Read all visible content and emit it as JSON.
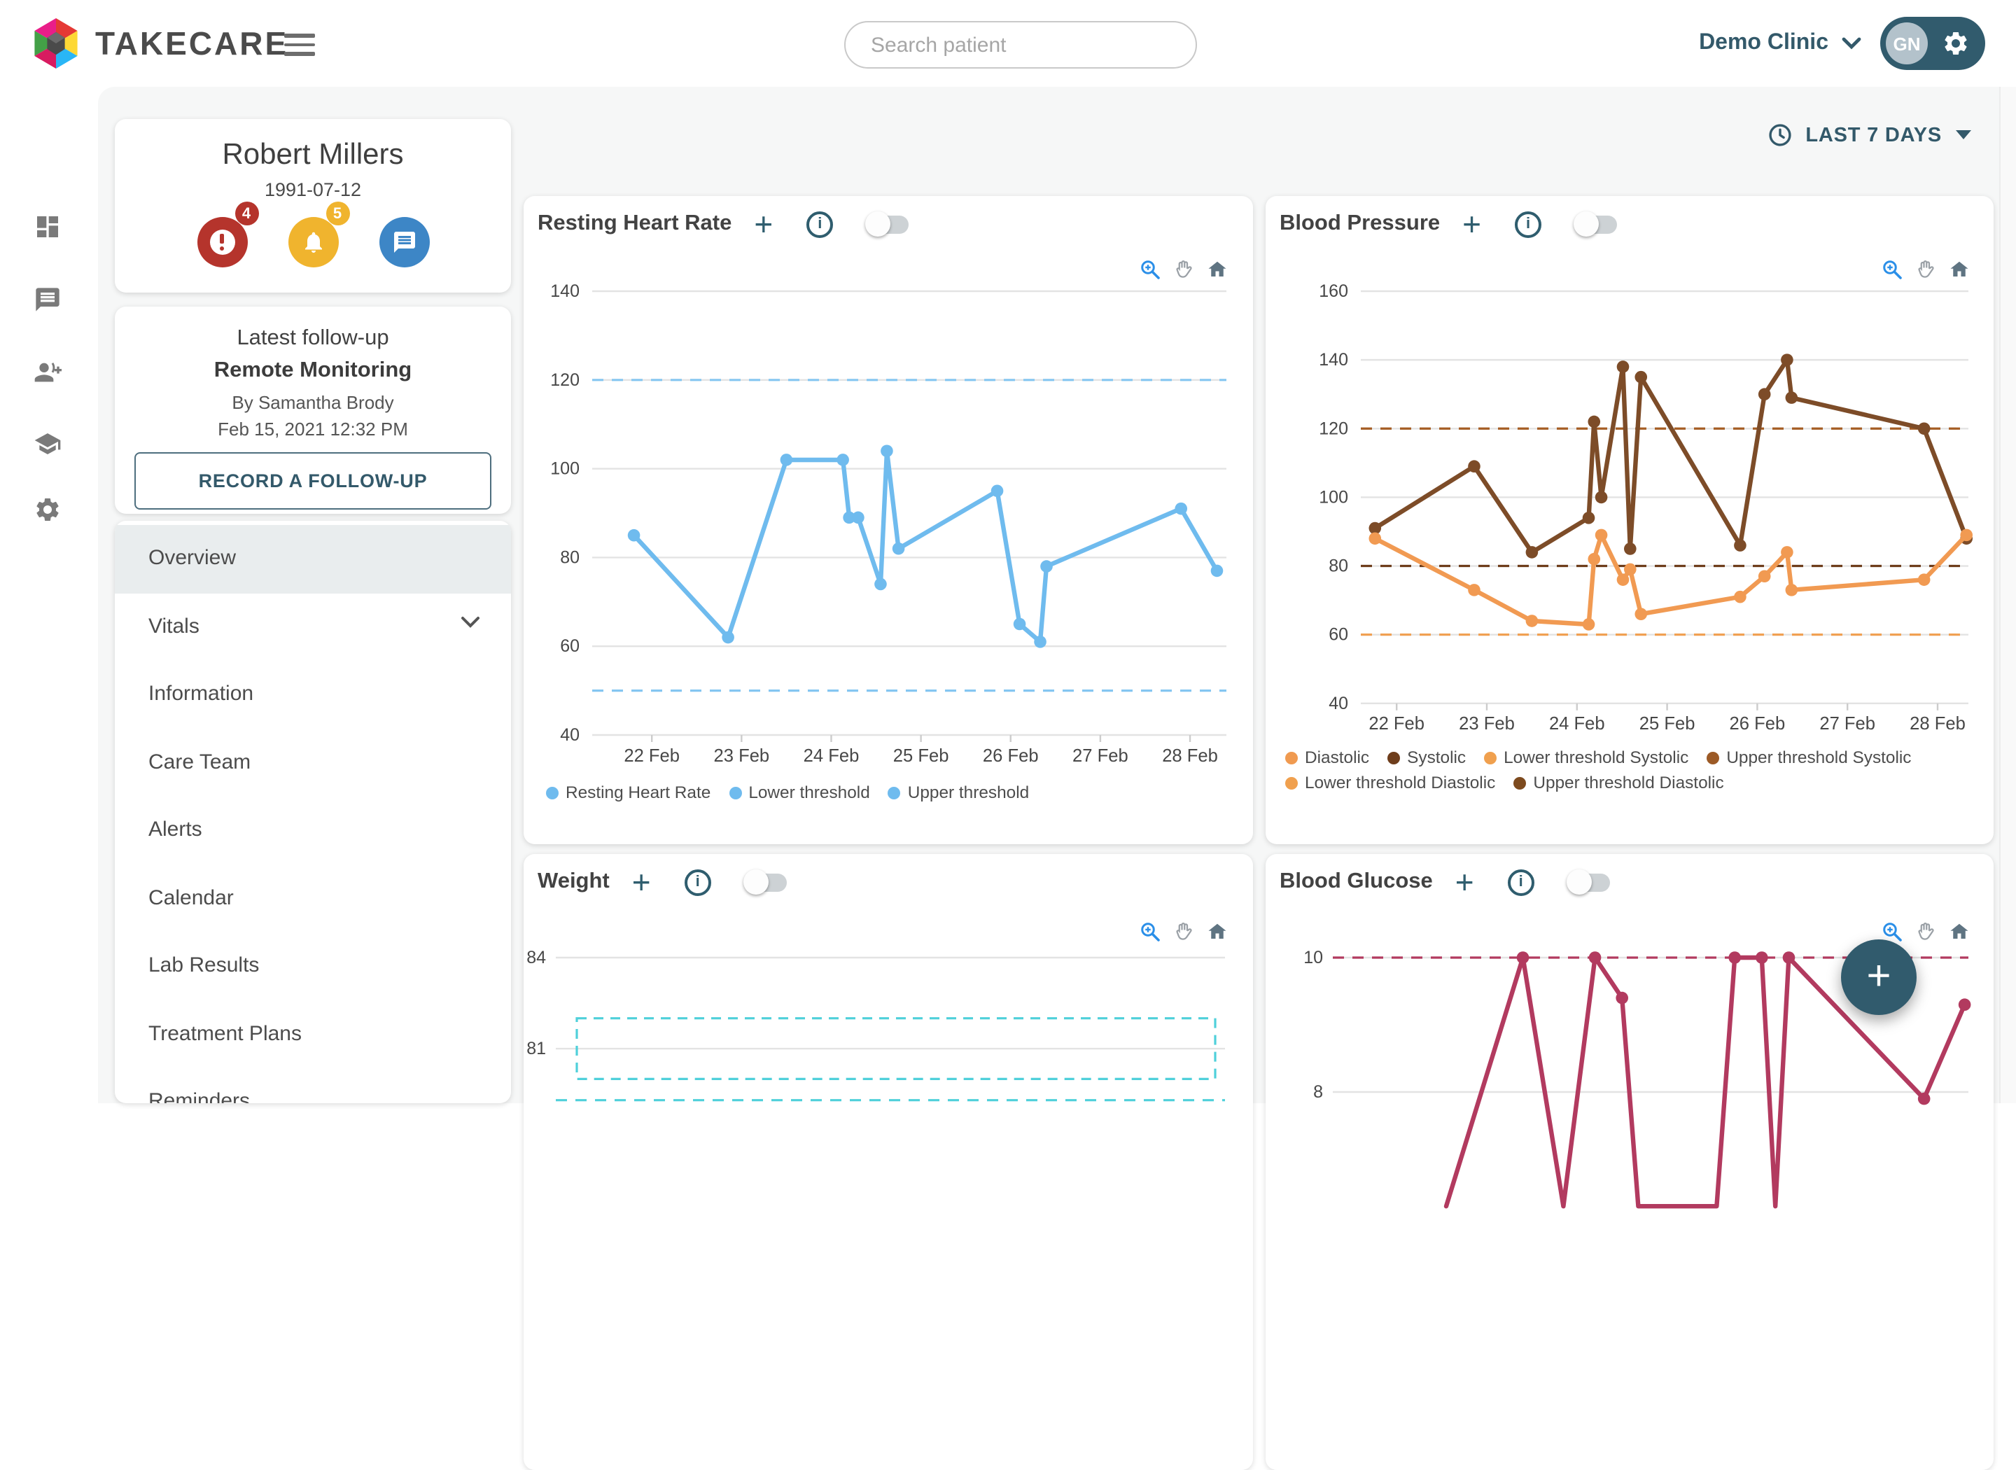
{
  "header": {
    "app_name": "TAKECARE",
    "search_placeholder": "Search patient",
    "clinic_name": "Demo Clinic",
    "avatar_initials": "GN"
  },
  "rail_icons": [
    "dashboard-icon",
    "chat-icon",
    "person-add-icon",
    "education-icon",
    "settings-icon"
  ],
  "patient": {
    "name": "Robert Millers",
    "dob": "1991-07-12",
    "alerts_count": "4",
    "notifications_count": "5"
  },
  "followup": {
    "title": "Latest follow-up",
    "type": "Remote Monitoring",
    "author": "By Samantha Brody",
    "datetime": "Feb 15, 2021 12:32 PM",
    "button_label": "RECORD A FOLLOW-UP"
  },
  "nav": {
    "items": [
      {
        "label": "Overview",
        "active": true
      },
      {
        "label": "Vitals",
        "has_chevron": true
      },
      {
        "label": "Information"
      },
      {
        "label": "Care Team"
      },
      {
        "label": "Alerts"
      },
      {
        "label": "Calendar"
      },
      {
        "label": "Lab Results"
      },
      {
        "label": "Treatment Plans"
      },
      {
        "label": "Reminders"
      }
    ]
  },
  "period_selector": {
    "label": "LAST 7 DAYS"
  },
  "icons": {
    "plus": "+",
    "info": "i",
    "fab_plus": "+"
  },
  "colors": {
    "accent_teal": "#315b6d",
    "heart_rate_blue": "#6fbbee",
    "systolic_brown": "#7d4c28",
    "diastolic_orange": "#f19a52",
    "glucose_maroon": "#b23a5f",
    "alert_red": "#b5342c",
    "notify_amber": "#f0b42e",
    "message_blue": "#3d86c6"
  },
  "chart_data": [
    {
      "id": "resting-heart-rate",
      "type": "line",
      "title": "Resting Heart Rate",
      "ylim": [
        40,
        140
      ],
      "yticks": [
        40,
        60,
        80,
        100,
        120,
        140
      ],
      "x_axis": {
        "tick_labels": [
          "22 Feb",
          "23 Feb",
          "24 Feb",
          "25 Feb",
          "26 Feb",
          "27 Feb",
          "28 Feb"
        ],
        "tick_days": [
          22,
          23,
          24,
          25,
          26,
          27,
          28
        ]
      },
      "series": [
        {
          "name": "Resting Heart Rate",
          "color": "#6fbbee",
          "points": [
            [
              21.8,
              85
            ],
            [
              22.85,
              62
            ],
            [
              23.5,
              102
            ],
            [
              24.13,
              102
            ],
            [
              24.2,
              89
            ],
            [
              24.3,
              89
            ],
            [
              24.55,
              74
            ],
            [
              24.62,
              104
            ],
            [
              24.75,
              82
            ],
            [
              25.85,
              95
            ],
            [
              26.1,
              65
            ],
            [
              26.33,
              61
            ],
            [
              26.4,
              78
            ],
            [
              27.9,
              91
            ],
            [
              28.3,
              77
            ]
          ]
        }
      ],
      "thresholds": [
        {
          "label": "Upper threshold",
          "value": 120,
          "color": "#85c6f1",
          "style": "dashed"
        },
        {
          "label": "Lower threshold",
          "value": 50,
          "color": "#85c6f1",
          "style": "dashed"
        }
      ],
      "legend_rows": [
        [
          {
            "label": "Resting Heart Rate",
            "color": "#6fbbee"
          },
          {
            "label": "Lower threshold",
            "color": "#6fbbee"
          },
          {
            "label": "Upper threshold",
            "color": "#6fbbee"
          }
        ]
      ]
    },
    {
      "id": "blood-pressure",
      "type": "line",
      "title": "Blood Pressure",
      "ylim": [
        40,
        160
      ],
      "yticks": [
        40,
        60,
        80,
        100,
        120,
        140,
        160
      ],
      "x_axis": {
        "tick_labels": [
          "22 Feb",
          "23 Feb",
          "24 Feb",
          "25 Feb",
          "26 Feb",
          "27 Feb",
          "28 Feb"
        ],
        "tick_days": [
          22,
          23,
          24,
          25,
          26,
          27,
          28
        ]
      },
      "series": [
        {
          "name": "Systolic",
          "color": "#7d4c28",
          "points": [
            [
              21.76,
              91
            ],
            [
              22.86,
              109
            ],
            [
              23.5,
              84
            ],
            [
              24.13,
              94
            ],
            [
              24.19,
              122
            ],
            [
              24.27,
              100
            ],
            [
              24.51,
              138
            ],
            [
              24.59,
              85
            ],
            [
              24.71,
              135
            ],
            [
              25.81,
              86
            ],
            [
              26.08,
              130
            ],
            [
              26.33,
              140
            ],
            [
              26.38,
              129
            ],
            [
              27.85,
              120
            ],
            [
              28.32,
              88
            ]
          ]
        },
        {
          "name": "Diastolic",
          "color": "#f19a52",
          "points": [
            [
              21.76,
              88
            ],
            [
              22.86,
              73
            ],
            [
              23.5,
              64
            ],
            [
              24.13,
              63
            ],
            [
              24.19,
              82
            ],
            [
              24.27,
              89
            ],
            [
              24.51,
              76
            ],
            [
              24.59,
              79
            ],
            [
              24.71,
              66
            ],
            [
              25.81,
              71
            ],
            [
              26.08,
              77
            ],
            [
              26.33,
              84
            ],
            [
              26.38,
              73
            ],
            [
              27.85,
              76
            ],
            [
              28.32,
              89
            ]
          ]
        }
      ],
      "thresholds": [
        {
          "label": "Upper threshold Systolic",
          "value": 120,
          "color": "#a55d24",
          "style": "dashed"
        },
        {
          "label": "Upper threshold Diastolic",
          "value": 80,
          "color": "#6e3d1b",
          "style": "dashed"
        },
        {
          "label": "Lower threshold",
          "value": 60,
          "color": "#f0a052",
          "style": "dashed"
        }
      ],
      "legend_rows": [
        [
          {
            "label": "Diastolic",
            "color": "#f09a50"
          },
          {
            "label": "Systolic",
            "color": "#6e3d1b"
          },
          {
            "label": "Lower threshold Systolic",
            "color": "#f0a04e"
          },
          {
            "label": "Upper threshold Systolic",
            "color": "#9c5a26"
          }
        ],
        [
          {
            "label": "Lower threshold Diastolic",
            "color": "#f0a04e"
          },
          {
            "label": "Upper threshold Diastolic",
            "color": "#7d4a1e"
          }
        ]
      ]
    },
    {
      "id": "weight",
      "type": "line",
      "title": "Weight",
      "yticks": [
        81,
        84
      ],
      "series": [],
      "threshold_band": {
        "from": 80,
        "to": 82,
        "color": "#4fd0da",
        "style": "dashed",
        "estimated": true
      },
      "thresholds": [
        {
          "label": "lower dashed line (partially visible)",
          "value": 79.3,
          "color": "#4fd0da",
          "style": "dashed",
          "estimated": true
        }
      ],
      "legend_rows": []
    },
    {
      "id": "blood-glucose",
      "type": "line",
      "title": "Blood Glucose",
      "yticks": [
        8,
        10
      ],
      "series": [
        {
          "name": "Blood Glucose",
          "color": "#b23a5f",
          "points": [
            [
              22.55,
              6.3,
              "dip"
            ],
            [
              23.4,
              10
            ],
            [
              23.85,
              6.3,
              "dip"
            ],
            [
              24.2,
              10
            ],
            [
              24.5,
              9.4
            ],
            [
              24.68,
              6.3,
              "dip"
            ],
            [
              25.55,
              6.3,
              "dip"
            ],
            [
              25.75,
              10
            ],
            [
              26.05,
              10
            ],
            [
              26.2,
              6.3,
              "dip"
            ],
            [
              26.35,
              10
            ],
            [
              27.85,
              7.9
            ],
            [
              28.3,
              9.3
            ]
          ],
          "note": "points flagged dip descend below the visible chart area; values estimated"
        }
      ],
      "thresholds": [
        {
          "label": "Upper threshold",
          "value": 10,
          "color": "#b23a5f",
          "style": "dashed"
        }
      ],
      "legend_rows": []
    }
  ]
}
